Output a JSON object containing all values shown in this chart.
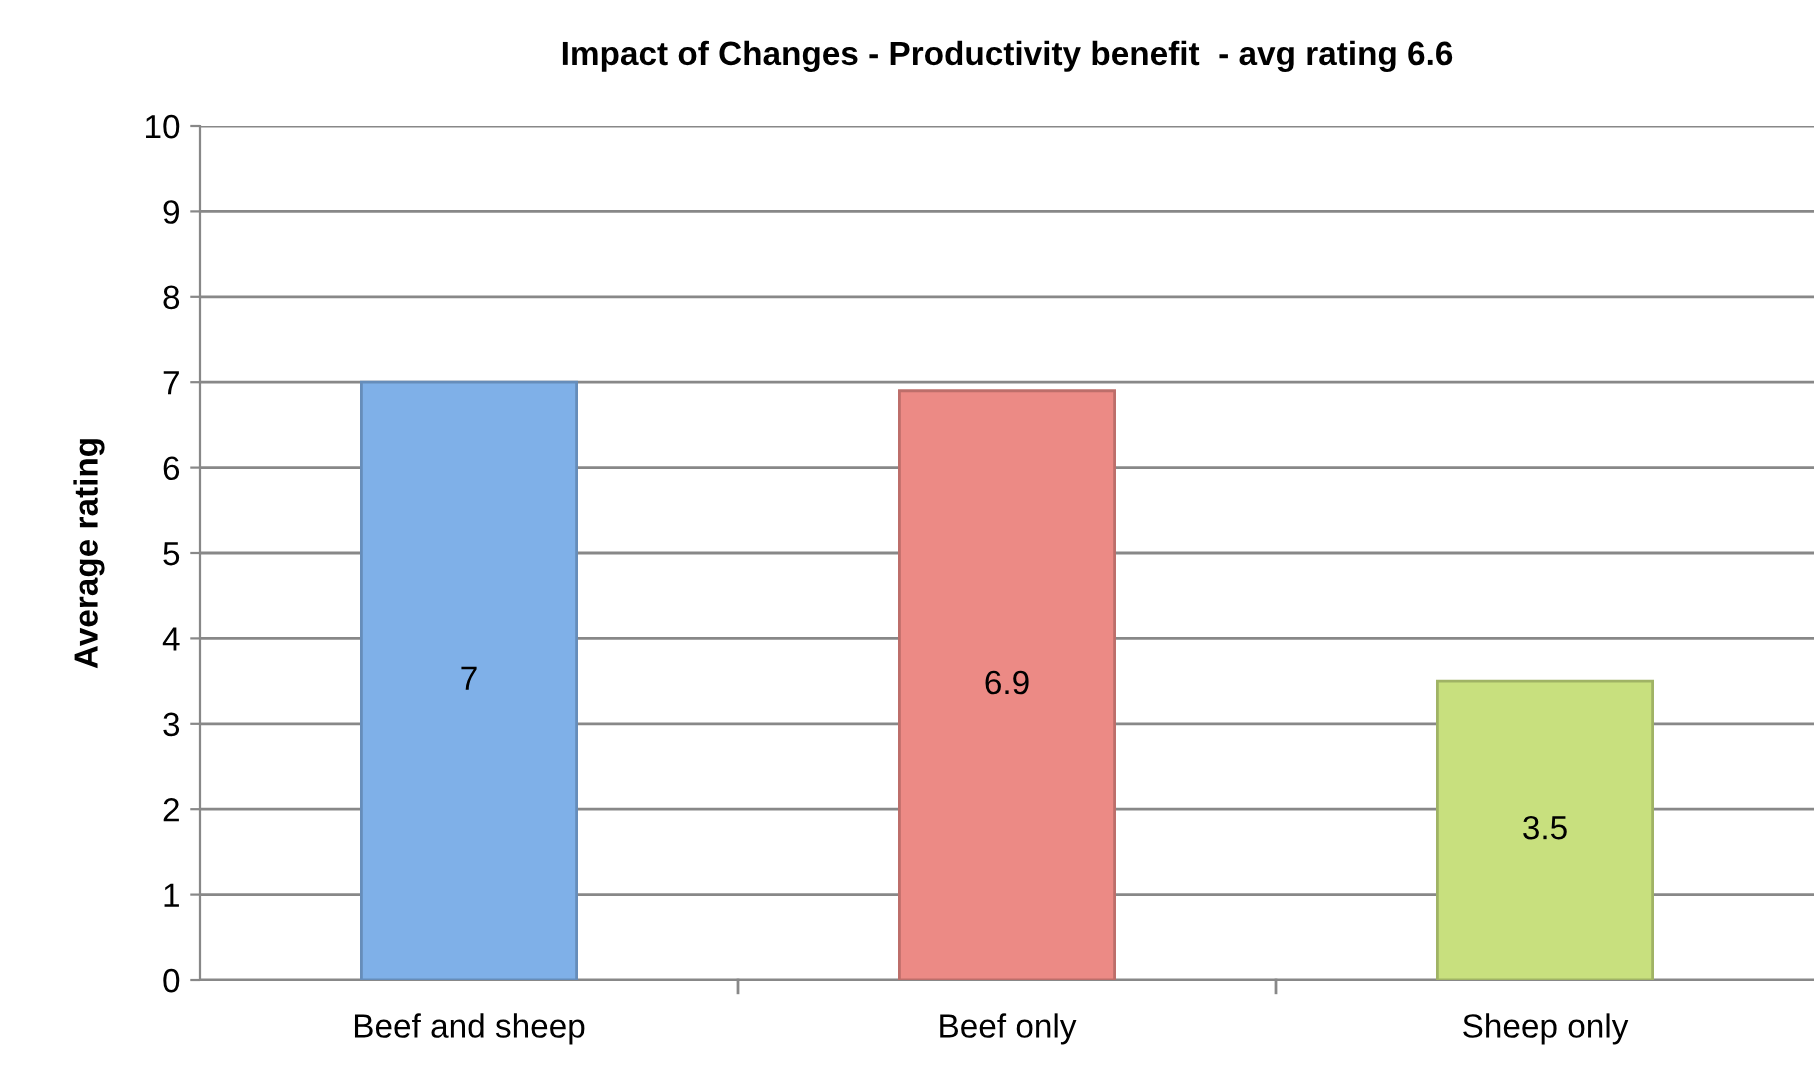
{
  "chart_data": {
    "type": "bar",
    "title": "Impact of Changes - Productivity benefit  - avg rating 6.6",
    "ylabel": "Average rating",
    "categories": [
      "Beef and sheep",
      "Beef only",
      "Sheep only"
    ],
    "values": [
      7,
      6.9,
      3.5
    ],
    "colors": [
      "#7fb0e8",
      "#ec8a85",
      "#c8e07e"
    ],
    "ylim": [
      0,
      10
    ],
    "yticks": [
      0,
      1,
      2,
      3,
      4,
      5,
      6,
      7,
      8,
      9,
      10
    ],
    "grid": "y",
    "data_labels": true
  }
}
